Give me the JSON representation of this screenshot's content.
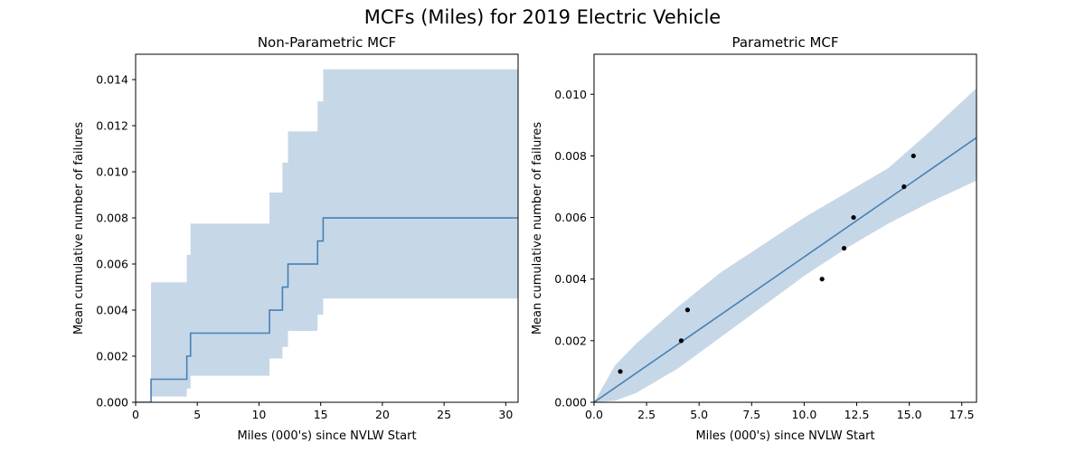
{
  "suptitle": "MCFs (Miles) for 2019 Electric Vehicle",
  "colors": {
    "line": "#4682b4",
    "band": "#c6d7e8",
    "points": "#000000",
    "axis": "#000000"
  },
  "chart_data": [
    {
      "type": "line",
      "step": true,
      "title": "Non-Parametric MCF",
      "xlabel": "Miles (000's) since NVLW Start",
      "ylabel": "Mean cumulative number of failures",
      "xlim": [
        0,
        31
      ],
      "ylim": [
        0,
        0.0151
      ],
      "xticks": [
        0,
        5,
        10,
        15,
        20,
        25,
        30
      ],
      "xtick_labels": [
        "0",
        "5",
        "10",
        "15",
        "20",
        "25",
        "30"
      ],
      "yticks": [
        0,
        0.002,
        0.004,
        0.006,
        0.008,
        0.01,
        0.012,
        0.014
      ],
      "ytick_labels": [
        "0.000",
        "0.002",
        "0.004",
        "0.006",
        "0.008",
        "0.010",
        "0.012",
        "0.014"
      ],
      "series": [
        {
          "x": [
            0,
            1.25,
            4.15,
            4.45,
            10.85,
            11.9,
            12.35,
            14.75,
            15.2,
            31
          ],
          "y": [
            0,
            0.001,
            0.002,
            0.003,
            0.004,
            0.005,
            0.006,
            0.007,
            0.008,
            0.008
          ]
        }
      ],
      "confidence_band": {
        "x": [
          1.25,
          4.15,
          4.45,
          10.85,
          11.9,
          12.35,
          14.75,
          15.2,
          31
        ],
        "lower": [
          0.00025,
          0.0006,
          0.00115,
          0.0019,
          0.0024,
          0.0031,
          0.0038,
          0.0045,
          0.0045
        ],
        "upper": [
          0.0052,
          0.0064,
          0.00775,
          0.0091,
          0.0104,
          0.01175,
          0.01305,
          0.01445,
          0.01445
        ]
      }
    },
    {
      "type": "line",
      "title": "Parametric MCF",
      "xlabel": "Miles (000's) since NVLW Start",
      "ylabel": "Mean cumulative number of failures",
      "xlim": [
        0,
        18.2
      ],
      "ylim": [
        0,
        0.0113
      ],
      "xticks": [
        0,
        2.5,
        5,
        7.5,
        10,
        12.5,
        15,
        17.5
      ],
      "xtick_labels": [
        "0.0",
        "2.5",
        "5.0",
        "7.5",
        "10.0",
        "12.5",
        "15.0",
        "17.5"
      ],
      "yticks": [
        0,
        0.002,
        0.004,
        0.006,
        0.008,
        0.01
      ],
      "ytick_labels": [
        "0.000",
        "0.002",
        "0.004",
        "0.006",
        "0.008",
        "0.010"
      ],
      "series": [
        {
          "x": [
            0,
            18.2
          ],
          "y": [
            0,
            0.00859
          ]
        }
      ],
      "points": {
        "x": [
          1.25,
          4.15,
          4.45,
          10.85,
          11.9,
          12.35,
          14.75,
          15.2
        ],
        "y": [
          0.001,
          0.002,
          0.003,
          0.004,
          0.005,
          0.006,
          0.007,
          0.008
        ]
      },
      "confidence_band": {
        "x": [
          0,
          1,
          2,
          4,
          6,
          8,
          10,
          12,
          14,
          16,
          18.2
        ],
        "lower": [
          0,
          5e-05,
          0.0003,
          0.0011,
          0.0021,
          0.0031,
          0.0041,
          0.005,
          0.0058,
          0.0065,
          0.0072
        ],
        "upper": [
          0,
          0.0012,
          0.0019,
          0.0031,
          0.0042,
          0.0051,
          0.006,
          0.0068,
          0.0076,
          0.0088,
          0.0102
        ]
      }
    }
  ]
}
